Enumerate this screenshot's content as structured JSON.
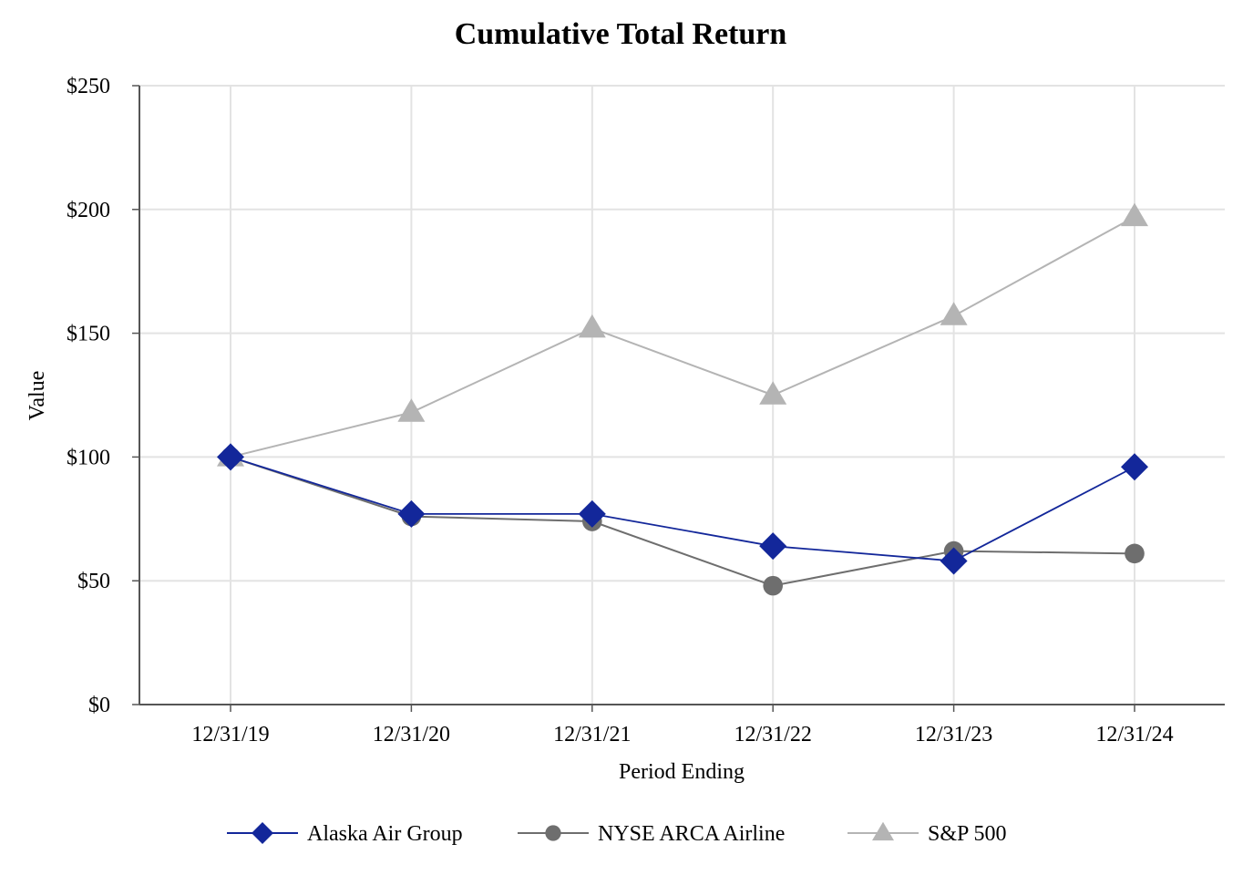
{
  "chart_data": {
    "type": "line",
    "title": "Cumulative Total Return",
    "xlabel": "Period Ending",
    "ylabel": "Value",
    "categories": [
      "12/31/19",
      "12/31/20",
      "12/31/21",
      "12/31/22",
      "12/31/23",
      "12/31/24"
    ],
    "ylim": [
      0,
      250
    ],
    "yticks": [
      0,
      50,
      100,
      150,
      200,
      250
    ],
    "ytick_labels": [
      "$0",
      "$50",
      "$100",
      "$150",
      "$200",
      "$250"
    ],
    "grid": true,
    "legend_position": "bottom",
    "series": [
      {
        "name": "Alaska Air Group",
        "color": "#13279A",
        "marker": "diamond",
        "values": [
          100,
          77,
          77,
          64,
          58,
          96
        ]
      },
      {
        "name": "NYSE ARCA Airline",
        "color": "#6E6E6E",
        "marker": "circle",
        "values": [
          100,
          76,
          74,
          48,
          62,
          61
        ]
      },
      {
        "name": "S&P 500",
        "color": "#B4B4B4",
        "marker": "triangle",
        "values": [
          100,
          118,
          152,
          125,
          157,
          197
        ]
      }
    ]
  }
}
